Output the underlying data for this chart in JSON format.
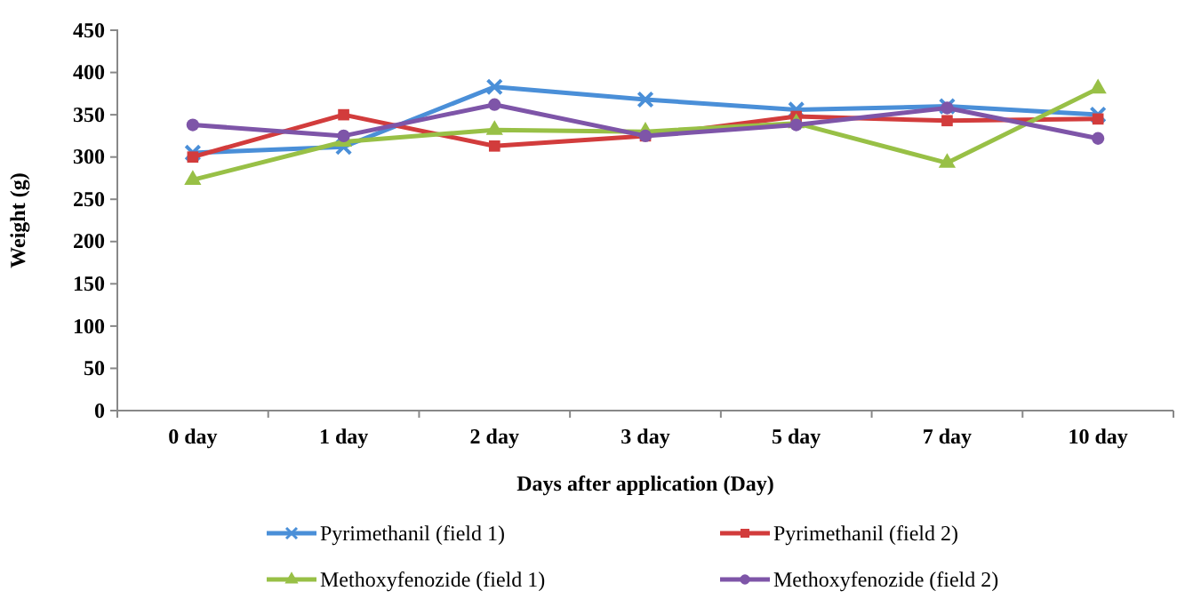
{
  "chart_data": {
    "type": "line",
    "xlabel": "Days after application  (Day)",
    "ylabel": "Weight  (g)",
    "categories": [
      "0 day",
      "1 day",
      "2 day",
      "3 day",
      "5 day",
      "7 day",
      "10 day"
    ],
    "ylim": [
      0,
      450
    ],
    "yticks": [
      0,
      50,
      100,
      150,
      200,
      250,
      300,
      350,
      400,
      450
    ],
    "grid": false,
    "legend": "bottom",
    "series": [
      {
        "name": "Pyrimethanil (field 1)",
        "color": "#4a8fd8",
        "marker": "cross",
        "values": [
          305,
          312,
          383,
          368,
          356,
          360,
          350
        ]
      },
      {
        "name": "Pyrimethanil (field 2)",
        "color": "#d23c3c",
        "marker": "square",
        "values": [
          300,
          350,
          313,
          325,
          348,
          343,
          345
        ]
      },
      {
        "name": "Methoxyfenozide (field 1)",
        "color": "#98c046",
        "marker": "triangle",
        "values": [
          273,
          318,
          332,
          330,
          340,
          293,
          381
        ]
      },
      {
        "name": "Methoxyfenozide (field 2)",
        "color": "#7e55a8",
        "marker": "circle",
        "values": [
          338,
          325,
          362,
          325,
          338,
          358,
          322
        ]
      }
    ]
  }
}
